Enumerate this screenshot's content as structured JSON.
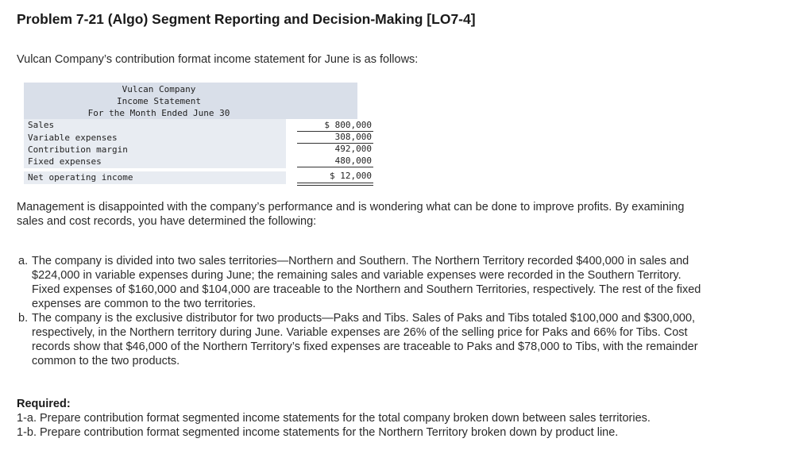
{
  "title": "Problem 7-21 (Algo) Segment Reporting and Decision-Making [LO7-4]",
  "intro": "Vulcan Company’s contribution format income statement for June is as follows:",
  "statement": {
    "company": "Vulcan Company",
    "name": "Income Statement",
    "period": "For the Month Ended June 30",
    "rows": [
      {
        "label": "Sales",
        "amount": "$ 800,000"
      },
      {
        "label": "Variable expenses",
        "amount": "308,000"
      },
      {
        "label": "Contribution margin",
        "amount": "492,000"
      },
      {
        "label": "Fixed expenses",
        "amount": "480,000"
      },
      {
        "label": "Net operating income",
        "amount": "$ 12,000"
      }
    ]
  },
  "management_line1": "Management is disappointed with the company’s performance and is wondering what can be done to improve profits. By examining",
  "management_line2": "sales and cost records, you have determined the following:",
  "items": [
    {
      "marker": "a.",
      "lines": [
        "The company is divided into two sales territories—Northern and Southern. The Northern Territory recorded $400,000 in sales and",
        "$224,000 in variable expenses during June; the remaining sales and variable expenses were recorded in the Southern Territory.",
        "Fixed expenses of $160,000 and $104,000 are traceable to the Northern and Southern Territories, respectively. The rest of the fixed",
        "expenses are common to the two territories."
      ]
    },
    {
      "marker": "b.",
      "lines": [
        "The company is the exclusive distributor for two products—Paks and Tibs. Sales of Paks and Tibs totaled $100,000 and $300,000,",
        "respectively, in the Northern territory during June. Variable expenses are 26% of the selling price for Paks and 66% for Tibs. Cost",
        "records show that $46,000 of the Northern Territory’s fixed expenses are traceable to Paks and $78,000 to Tibs, with the remainder",
        "common to the two products."
      ]
    }
  ],
  "required": {
    "heading": "Required:",
    "lines": [
      "1-a. Prepare contribution format segmented income statements for the total company broken down between sales territories.",
      "1-b. Prepare contribution format segmented income statements for the Northern Territory broken down by product line."
    ]
  }
}
